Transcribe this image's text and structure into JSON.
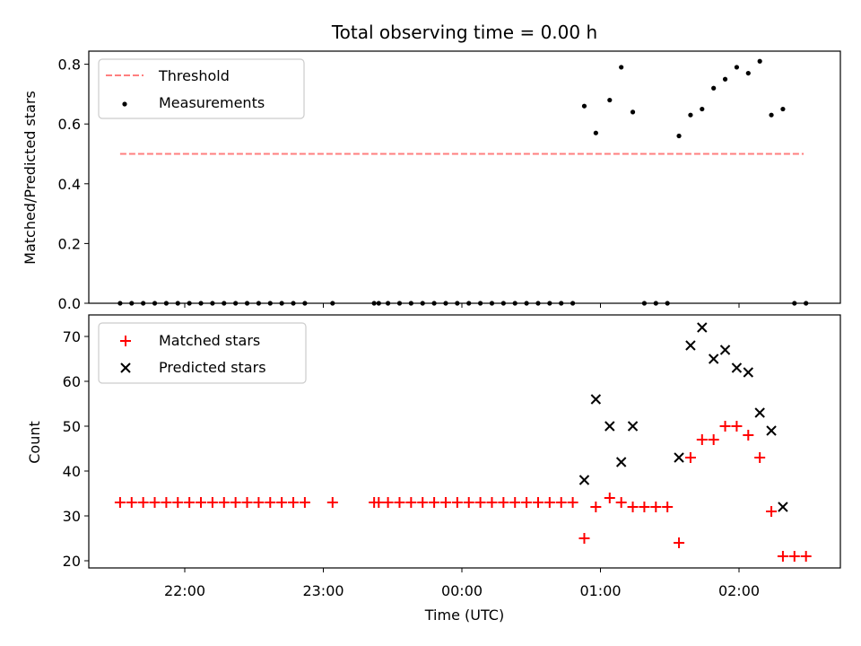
{
  "chart_data": [
    {
      "type": "scatter",
      "title": "Total observing time = 0.00 h",
      "xlabel": "",
      "ylabel": "Matched/Predicted stars",
      "ylim": [
        0,
        0.85
      ],
      "yticks": [
        0.0,
        0.2,
        0.4,
        0.6,
        0.8
      ],
      "ytick_labels": [
        "0.0",
        "0.2",
        "0.4",
        "0.6",
        "0.8"
      ],
      "legend": {
        "placement": "upper left",
        "entries": [
          "Threshold",
          "Measurements"
        ]
      },
      "threshold": {
        "name": "Threshold",
        "value": 0.5,
        "color": "#ff7f7f",
        "style": "dashed",
        "x_range": [
          "21:32",
          "02:28"
        ]
      },
      "series": [
        {
          "name": "Measurements",
          "marker": "dot",
          "color": "#000000",
          "x": [
            "21:32",
            "21:37",
            "21:42",
            "21:47",
            "21:52",
            "21:57",
            "22:02",
            "22:07",
            "22:12",
            "22:17",
            "22:22",
            "22:27",
            "22:32",
            "22:37",
            "22:42",
            "22:47",
            "22:52",
            "23:04",
            "23:22",
            "23:24",
            "23:28",
            "23:33",
            "23:38",
            "23:43",
            "23:48",
            "23:53",
            "23:58",
            "00:03",
            "00:08",
            "00:13",
            "00:18",
            "00:23",
            "00:28",
            "00:33",
            "00:38",
            "00:43",
            "00:48",
            "00:53",
            "00:58",
            "01:04",
            "01:09",
            "01:14",
            "01:19",
            "01:24",
            "01:29",
            "01:34",
            "01:39",
            "01:44",
            "01:49",
            "01:54",
            "01:59",
            "02:04",
            "02:09",
            "02:14",
            "02:19",
            "02:24",
            "02:29"
          ],
          "y": [
            0,
            0,
            0,
            0,
            0,
            0,
            0,
            0,
            0,
            0,
            0,
            0,
            0,
            0,
            0,
            0,
            0,
            0,
            0,
            0,
            0,
            0,
            0,
            0,
            0,
            0,
            0,
            0,
            0,
            0,
            0,
            0,
            0,
            0,
            0,
            0,
            0,
            0.66,
            0.57,
            0.68,
            0.79,
            0.64,
            0,
            0,
            0,
            0.56,
            0.63,
            0.65,
            0.72,
            0.75,
            0.79,
            0.77,
            0.81,
            0.63,
            0.65,
            0,
            0
          ]
        }
      ]
    },
    {
      "type": "scatter",
      "title": "",
      "xlabel": "Time (UTC)",
      "ylabel": "Count",
      "ylim": [
        18.5,
        75
      ],
      "yticks": [
        20,
        30,
        40,
        50,
        60,
        70
      ],
      "ytick_labels": [
        "20",
        "30",
        "40",
        "50",
        "60",
        "70"
      ],
      "xticks": [
        "22:00",
        "23:00",
        "00:00",
        "01:00",
        "02:00"
      ],
      "legend": {
        "placement": "upper left",
        "entries": [
          "Matched stars",
          "Predicted stars"
        ]
      },
      "series": [
        {
          "name": "Matched stars",
          "marker": "plus",
          "color": "#ff0000",
          "x": [
            "21:32",
            "21:37",
            "21:42",
            "21:47",
            "21:52",
            "21:57",
            "22:02",
            "22:07",
            "22:12",
            "22:17",
            "22:22",
            "22:27",
            "22:32",
            "22:37",
            "22:42",
            "22:47",
            "22:52",
            "23:04",
            "23:22",
            "23:24",
            "23:28",
            "23:33",
            "23:38",
            "23:43",
            "23:48",
            "23:53",
            "23:58",
            "00:03",
            "00:08",
            "00:13",
            "00:18",
            "00:23",
            "00:28",
            "00:33",
            "00:38",
            "00:43",
            "00:48",
            "00:53",
            "00:58",
            "01:04",
            "01:09",
            "01:14",
            "01:19",
            "01:24",
            "01:29",
            "01:34",
            "01:39",
            "01:44",
            "01:49",
            "01:54",
            "01:59",
            "02:04",
            "02:09",
            "02:14",
            "02:19",
            "02:24",
            "02:29"
          ],
          "y": [
            33,
            33,
            33,
            33,
            33,
            33,
            33,
            33,
            33,
            33,
            33,
            33,
            33,
            33,
            33,
            33,
            33,
            33,
            33,
            33,
            33,
            33,
            33,
            33,
            33,
            33,
            33,
            33,
            33,
            33,
            33,
            33,
            33,
            33,
            33,
            33,
            33,
            25,
            32,
            34,
            33,
            32,
            32,
            32,
            32,
            24,
            43,
            47,
            47,
            50,
            50,
            48,
            43,
            31,
            21,
            21,
            21
          ]
        },
        {
          "name": "Predicted stars",
          "marker": "x",
          "color": "#000000",
          "x": [
            "00:53",
            "00:58",
            "01:04",
            "01:09",
            "01:14",
            "01:34",
            "01:39",
            "01:44",
            "01:49",
            "01:54",
            "01:59",
            "02:04",
            "02:09",
            "02:14"
          ],
          "y": [
            38,
            56,
            50,
            42,
            50,
            43,
            68,
            72,
            65,
            67,
            63,
            62,
            53,
            49
          ]
        },
        {
          "name": "",
          "marker": "x",
          "color": "#000000",
          "x": [
            "02:19"
          ],
          "y": [
            32
          ]
        }
      ]
    }
  ]
}
